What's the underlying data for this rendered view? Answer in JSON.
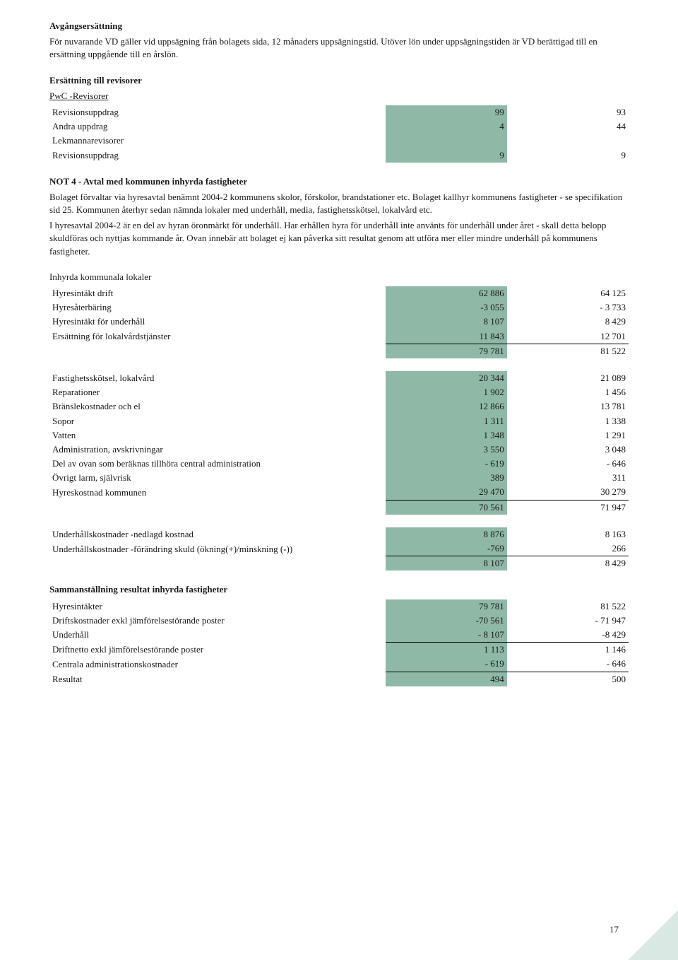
{
  "colors": {
    "highlight_bg": "#8fb8a7",
    "text": "#1a1a1a",
    "page_bg": "#ffffff",
    "corner": "#d9e8e2"
  },
  "typography": {
    "font_family": "Georgia, Times New Roman, serif",
    "font_size_pt": 10,
    "heading_weight": "bold"
  },
  "page_number": "17",
  "s1": {
    "title": "Avgångsersättning",
    "body": "För nuvarande VD gäller vid uppsägning från bolagets sida, 12 månaders uppsägningstid. Utöver lön under uppsägningstiden är VD berättigad till en ersättning uppgående till en årslön."
  },
  "s2": {
    "title": "Ersättning till revisorer",
    "sub": "PwC -Revisorer",
    "rows": [
      {
        "label": "Revisionsuppdrag",
        "c1": "99",
        "c2": "93"
      },
      {
        "label": "Andra uppdrag",
        "c1": "4",
        "c2": "44"
      },
      {
        "label": "Lekmannarevisorer",
        "c1": "",
        "c2": ""
      },
      {
        "label": "Revisionsuppdrag",
        "c1": "9",
        "c2": "9"
      }
    ]
  },
  "s3": {
    "title": "NOT 4 - Avtal med kommunen inhyrda fastigheter",
    "body": "Bolaget förvaltar via hyresavtal benämnt 2004-2 kommunens skolor, förskolor, brandstationer etc. Bolaget kallhyr kommunens fastigheter - se specifikation sid 25. Kommunen återhyr sedan nämnda lokaler med under­håll, media, fastighetsskötsel, lokalvård etc.\nI hyresavtal 2004-2 är en del av hyran öronmärkt för underhåll. Har erhållen hyra för underhåll inte använts för under­håll under året - skall detta belopp skuldföras och nyttjas kommande år. Ovan innebär att bolaget ej kan påverka sitt resultat genom att utföra mer eller mindre underhåll på kommunens fastigheter."
  },
  "t1": {
    "header": "Inhyrda kommunala lokaler",
    "rows": [
      {
        "label": "Hyresintäkt drift",
        "c1": "62 886",
        "c2": "64 125"
      },
      {
        "label": "Hyresåterbäring",
        "c1": "-3 055",
        "c2": "- 3 733"
      },
      {
        "label": "Hyresintäkt för underhåll",
        "c1": "8 107",
        "c2": "8 429"
      },
      {
        "label": "Ersättning för lokalvårdstjänster",
        "c1": "11 843",
        "c2": "12 701",
        "underline": true
      },
      {
        "label": "",
        "c1": "79 781",
        "c2": "81 522",
        "sum": true
      }
    ]
  },
  "t2": {
    "rows": [
      {
        "label": "Fastighetsskötsel, lokalvård",
        "c1": "20 344",
        "c2": "21 089"
      },
      {
        "label": "Reparationer",
        "c1": "1 902",
        "c2": "1 456"
      },
      {
        "label": "Bränslekostnader och el",
        "c1": "12 866",
        "c2": "13 781"
      },
      {
        "label": "Sopor",
        "c1": "1 311",
        "c2": "1 338"
      },
      {
        "label": "Vatten",
        "c1": "1 348",
        "c2": "1 291"
      },
      {
        "label": "Administration, avskrivningar",
        "c1": "3 550",
        "c2": "3 048"
      },
      {
        "label": "Del av ovan som beräknas tillhöra central administration",
        "c1": "- 619",
        "c2": "- 646"
      },
      {
        "label": "Övrigt larm, självrisk",
        "c1": "389",
        "c2": "311"
      },
      {
        "label": "Hyreskostnad kommunen",
        "c1": "29 470",
        "c2": "30 279",
        "underline": true
      },
      {
        "label": "",
        "c1": "70 561",
        "c2": "71 947",
        "sum": true
      }
    ]
  },
  "t3": {
    "rows": [
      {
        "label": "Underhållskostnader -nedlagd kostnad",
        "c1": "8 876",
        "c2": "8 163"
      },
      {
        "label": "Underhållskostnader -förändring skuld (ökning(+)/minskning (-))",
        "c1": "-769",
        "c2": "266",
        "underline": true
      },
      {
        "label": "",
        "c1": "8 107",
        "c2": "8 429",
        "sum": true
      }
    ]
  },
  "t4": {
    "header": "Sammanställning resultat inhyrda fastigheter",
    "rows": [
      {
        "label": "Hyresintäkter",
        "c1": "79 781",
        "c2": "81 522"
      },
      {
        "label": "Driftskostnader exkl jämförelsestörande poster",
        "c1": "-70 561",
        "c2": "- 71 947"
      },
      {
        "label": "Underhåll",
        "c1": "- 8 107",
        "c2": "-8 429",
        "underline": true
      },
      {
        "label": "Driftnetto exkl jämförelsestörande poster",
        "c1": "1 113",
        "c2": "1 146",
        "sum": true
      },
      {
        "label": "Centrala administrationskostnader",
        "c1": "- 619",
        "c2": "- 646",
        "underline": true
      },
      {
        "label": "Resultat",
        "c1": "494",
        "c2": "500",
        "sum": true
      }
    ]
  }
}
